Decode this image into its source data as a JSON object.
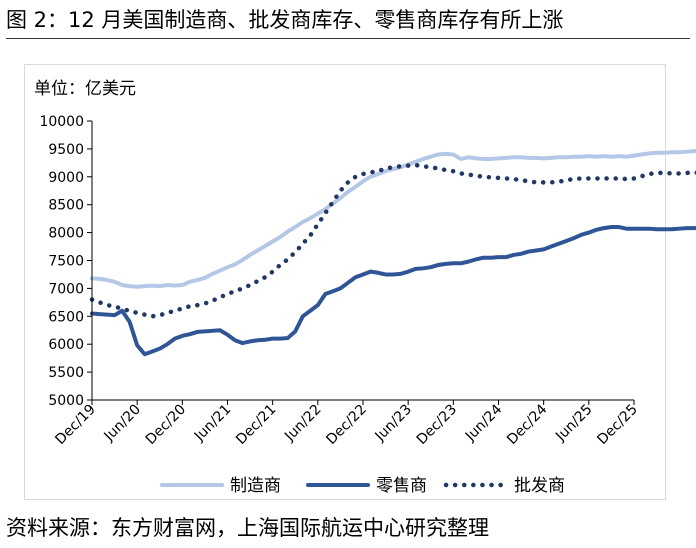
{
  "figure": {
    "title": "图 2：12 月美国制造商、批发商库存、零售商库存有所上涨",
    "unit_label": "单位：亿美元",
    "source": "资料来源：东方财富网，上海国际航运中心研究整理"
  },
  "colors": {
    "manufacturer": "#b4c7e7",
    "retailer": "#2f5597",
    "wholesaler": "#203864",
    "axis": "#000000"
  },
  "chart_data": {
    "type": "line",
    "x_start": "2019-12",
    "x_end": "2025-12",
    "x_ticks": [
      "Dec/19",
      "Jun/20",
      "Dec/20",
      "Jun/21",
      "Dec/21",
      "Jun/22",
      "Dec/22",
      "Jun/23",
      "Dec/23",
      "Jun/24",
      "Dec/24",
      "Jun/25",
      "Dec/25"
    ],
    "ylim": [
      5000,
      10000
    ],
    "y_ticks": [
      5000,
      5500,
      6000,
      6500,
      7000,
      7500,
      8000,
      8500,
      9000,
      9500,
      10000
    ],
    "legend_position": "bottom",
    "series": [
      {
        "name": "制造商",
        "key": "manufacturer",
        "style": "solid-light",
        "values": [
          7180,
          7170,
          7150,
          7120,
          7060,
          7040,
          7030,
          7040,
          7050,
          7040,
          7060,
          7050,
          7060,
          7120,
          7150,
          7190,
          7260,
          7320,
          7380,
          7430,
          7510,
          7600,
          7680,
          7760,
          7840,
          7920,
          8020,
          8100,
          8190,
          8260,
          8340,
          8420,
          8520,
          8620,
          8730,
          8820,
          8920,
          9000,
          9050,
          9100,
          9140,
          9170,
          9220,
          9270,
          9320,
          9360,
          9400,
          9410,
          9400,
          9320,
          9350,
          9330,
          9320,
          9320,
          9330,
          9340,
          9350,
          9350,
          9340,
          9340,
          9330,
          9340,
          9350,
          9350,
          9360,
          9360,
          9370,
          9360,
          9370,
          9360,
          9370,
          9360,
          9380,
          9400,
          9420,
          9430,
          9430,
          9440,
          9440,
          9450,
          9460,
          9470,
          9470,
          9460,
          9470,
          9460,
          9470,
          9480,
          9490
        ]
      },
      {
        "name": "零售商",
        "key": "retailer",
        "style": "solid-dark",
        "values": [
          6550,
          6540,
          6530,
          6520,
          6600,
          6400,
          5980,
          5820,
          5870,
          5920,
          6000,
          6100,
          6150,
          6180,
          6220,
          6230,
          6240,
          6250,
          6170,
          6070,
          6020,
          6050,
          6070,
          6080,
          6100,
          6100,
          6110,
          6230,
          6500,
          6600,
          6700,
          6900,
          6950,
          7000,
          7100,
          7200,
          7250,
          7300,
          7280,
          7250,
          7250,
          7260,
          7300,
          7350,
          7360,
          7380,
          7420,
          7440,
          7450,
          7450,
          7480,
          7520,
          7550,
          7550,
          7560,
          7560,
          7600,
          7620,
          7660,
          7680,
          7700,
          7750,
          7800,
          7850,
          7900,
          7960,
          8000,
          8050,
          8080,
          8100,
          8100,
          8070,
          8070,
          8070,
          8070,
          8060,
          8060,
          8060,
          8070,
          8080,
          8080,
          8090,
          8100,
          8120,
          8150,
          8180,
          8150,
          8130,
          8130
        ]
      },
      {
        "name": "批发商",
        "key": "wholesaler",
        "style": "dotted",
        "values": [
          6800,
          6750,
          6700,
          6680,
          6630,
          6600,
          6560,
          6530,
          6500,
          6520,
          6560,
          6600,
          6640,
          6680,
          6700,
          6730,
          6780,
          6840,
          6900,
          6950,
          7000,
          7060,
          7130,
          7200,
          7300,
          7420,
          7520,
          7650,
          7800,
          7950,
          8150,
          8350,
          8550,
          8750,
          8900,
          9000,
          9050,
          9080,
          9100,
          9150,
          9170,
          9190,
          9200,
          9210,
          9190,
          9170,
          9150,
          9120,
          9100,
          9060,
          9040,
          9020,
          9000,
          8990,
          8980,
          8970,
          8960,
          8940,
          8920,
          8900,
          8900,
          8900,
          8910,
          8940,
          8960,
          8970,
          8970,
          8970,
          8970,
          8970,
          8970,
          8960,
          8970,
          9010,
          9050,
          9070,
          9070,
          9060,
          9060,
          9070,
          9070,
          9080,
          9100,
          9120,
          9130,
          9150,
          9180,
          9190,
          9200
        ]
      }
    ]
  }
}
